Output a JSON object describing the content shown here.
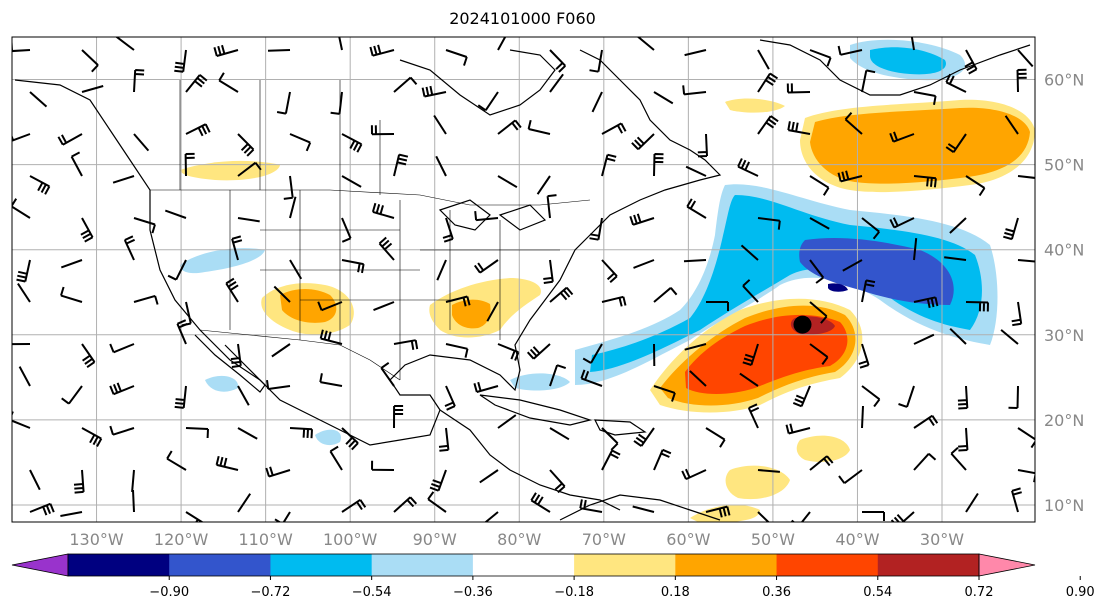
{
  "title": "2024101000 F060",
  "map": {
    "lat_labels": [
      "60°N",
      "50°N",
      "40°N",
      "30°N",
      "20°N",
      "10°N"
    ],
    "lon_labels": [
      "130°W",
      "120°W",
      "110°W",
      "100°W",
      "90°W",
      "80°W",
      "70°W",
      "60°W",
      "50°W",
      "40°W",
      "30°W"
    ],
    "lon_values": [
      -130,
      -120,
      -110,
      -100,
      -90,
      -80,
      -70,
      -60,
      -50,
      -40,
      -30
    ],
    "lat_values": [
      60,
      50,
      40,
      30,
      20,
      10
    ],
    "extent": {
      "lon_min": -140,
      "lon_max": -19,
      "lat_min": 8,
      "lat_max": 65
    },
    "marker": {
      "name": "storm-center",
      "lon": -46.5,
      "lat": 31.2
    }
  },
  "colorbar": {
    "ticks": [
      "−0.90",
      "−0.72",
      "−0.54",
      "−0.36",
      "−0.18",
      "0.18",
      "0.36",
      "0.54",
      "0.72",
      "0.90"
    ],
    "colors": [
      "#9933cc",
      "#000080",
      "#3355cc",
      "#00bbf0",
      "#aaddf5",
      "#ffffff",
      "#ffe680",
      "#ffa500",
      "#ff4500",
      "#b22222",
      "#ff88aa"
    ]
  }
}
